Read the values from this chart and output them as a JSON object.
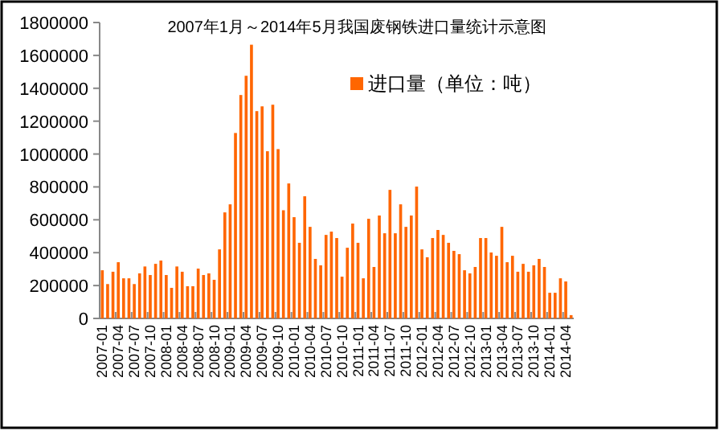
{
  "chart_data": {
    "type": "bar",
    "title": "2007年1月～2014年5月我国废钢铁进口量统计示意图",
    "categories": [
      "2007-01",
      null,
      null,
      "2007-04",
      null,
      null,
      "2007-07",
      null,
      null,
      "2007-10",
      null,
      null,
      "2008-01",
      null,
      null,
      "2008-04",
      null,
      null,
      "2008-07",
      null,
      null,
      "2008-10",
      null,
      null,
      "2009-01",
      null,
      null,
      "2009-04",
      null,
      null,
      "2009-07",
      null,
      null,
      "2009-10",
      null,
      null,
      "2010-01",
      null,
      null,
      "2010-04",
      null,
      null,
      "2010-07",
      null,
      null,
      "2010-10",
      null,
      null,
      "2011-01",
      null,
      null,
      "2011-04",
      null,
      null,
      "2011-07",
      null,
      null,
      "2011-10",
      null,
      null,
      "2012-01",
      null,
      null,
      "2012-04",
      null,
      null,
      "2012-07",
      null,
      null,
      "2012-10",
      null,
      null,
      "2013-01",
      null,
      null,
      "2013-04",
      null,
      null,
      "2013-07",
      null,
      null,
      "2013-10",
      null,
      null,
      "2014-01",
      null,
      null,
      "2014-04",
      null
    ],
    "series": [
      {
        "name": "进口量（单位：吨）",
        "color": "#ff6600",
        "values": [
          293000,
          209000,
          284000,
          342000,
          244000,
          244000,
          209000,
          274000,
          316000,
          264000,
          332000,
          352000,
          264000,
          186000,
          316000,
          284000,
          196000,
          196000,
          303000,
          264000,
          274000,
          235000,
          420000,
          645000,
          694000,
          1128000,
          1359000,
          1476000,
          1665000,
          1261000,
          1290000,
          1017000,
          1300000,
          1030000,
          658000,
          821000,
          616000,
          460000,
          743000,
          557000,
          362000,
          323000,
          508000,
          528000,
          489000,
          254000,
          430000,
          577000,
          460000,
          244000,
          606000,
          313000,
          626000,
          518000,
          782000,
          518000,
          694000,
          557000,
          626000,
          802000,
          420000,
          372000,
          489000,
          538000,
          508000,
          460000,
          411000,
          391000,
          293000,
          274000,
          313000,
          489000,
          489000,
          401000,
          381000,
          557000,
          342000,
          381000,
          284000,
          332000,
          284000,
          323000,
          362000,
          313000,
          156000,
          156000,
          244000,
          225000,
          20000
        ]
      }
    ],
    "ylim": [
      0,
      1800000
    ],
    "yticks": [
      0,
      200000,
      400000,
      600000,
      800000,
      1000000,
      1200000,
      1400000,
      1600000,
      1800000
    ],
    "legend": "top"
  }
}
